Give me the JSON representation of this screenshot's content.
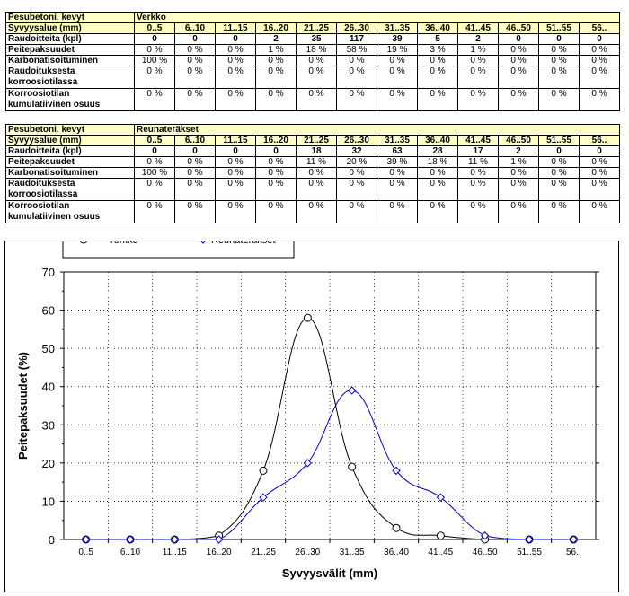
{
  "tables": [
    {
      "title": "Pesubetoni, kevyt",
      "group": "Verkko",
      "rows": [
        {
          "label": "Syvyysalue (mm)",
          "values": [
            "0..5",
            "6..10",
            "11..15",
            "16..20",
            "21..25",
            "26..30",
            "31..35",
            "36..40",
            "41..45",
            "46..50",
            "51..55",
            "56.."
          ]
        },
        {
          "label": "Raudoitteita (kpl)",
          "values": [
            "0",
            "0",
            "0",
            "2",
            "35",
            "117",
            "39",
            "5",
            "2",
            "0",
            "0",
            "0"
          ]
        },
        {
          "label": "Peitepaksuudet",
          "values": [
            "0 %",
            "0 %",
            "0 %",
            "1 %",
            "18 %",
            "58 %",
            "19 %",
            "3 %",
            "1 %",
            "0 %",
            "0 %",
            "0 %"
          ]
        },
        {
          "label": "Karbonatisoituminen",
          "values": [
            "100 %",
            "0 %",
            "0 %",
            "0 %",
            "0 %",
            "0 %",
            "0 %",
            "0 %",
            "0 %",
            "0 %",
            "0 %",
            "0 %"
          ]
        },
        {
          "label": "Raudoituksesta korroosiotilassa",
          "values": [
            "0 %",
            "0 %",
            "0 %",
            "0 %",
            "0 %",
            "0 %",
            "0 %",
            "0 %",
            "0 %",
            "0 %",
            "0 %",
            "0 %"
          ]
        },
        {
          "label": "Korroosiotilan kumulatiivinen osuus",
          "values": [
            "0 %",
            "0 %",
            "0 %",
            "0 %",
            "0 %",
            "0 %",
            "0 %",
            "0 %",
            "0 %",
            "0 %",
            "0 %",
            "0 %"
          ]
        }
      ]
    },
    {
      "title": "Pesubetoni, kevyt",
      "group": "Reunateräkset",
      "rows": [
        {
          "label": "Syvyysalue (mm)",
          "values": [
            "0..5",
            "6..10",
            "11..15",
            "16..20",
            "21..25",
            "26..30",
            "31..35",
            "36..40",
            "41..45",
            "46..50",
            "51..55",
            "56.."
          ]
        },
        {
          "label": "Raudoitteita (kpl)",
          "values": [
            "0",
            "0",
            "0",
            "0",
            "18",
            "32",
            "63",
            "28",
            "17",
            "2",
            "0",
            "0"
          ]
        },
        {
          "label": "Peitepaksuudet",
          "values": [
            "0 %",
            "0 %",
            "0 %",
            "0 %",
            "11 %",
            "20 %",
            "39 %",
            "18 %",
            "11 %",
            "1 %",
            "0 %",
            "0 %"
          ]
        },
        {
          "label": "Karbonatisoituminen",
          "values": [
            "100 %",
            "0 %",
            "0 %",
            "0 %",
            "0 %",
            "0 %",
            "0 %",
            "0 %",
            "0 %",
            "0 %",
            "0 %",
            "0 %"
          ]
        },
        {
          "label": "Raudoituksesta korroosiotilassa",
          "values": [
            "0 %",
            "0 %",
            "0 %",
            "0 %",
            "0 %",
            "0 %",
            "0 %",
            "0 %",
            "0 %",
            "0 %",
            "0 %",
            "0 %"
          ]
        },
        {
          "label": "Korroosiotilan kumulatiivinen osuus",
          "values": [
            "0 %",
            "0 %",
            "0 %",
            "0 %",
            "0 %",
            "0 %",
            "0 %",
            "0 %",
            "0 %",
            "0 %",
            "0 %",
            "0 %"
          ]
        }
      ]
    }
  ],
  "chart_data": {
    "type": "line",
    "title": "",
    "xlabel": "Syvyysvälit (mm)",
    "ylabel": "Peitepaksuudet (%)",
    "categories": [
      "0..5",
      "6..10",
      "11..15",
      "16..20",
      "21..25",
      "26..30",
      "31..35",
      "36..40",
      "41..45",
      "46..50",
      "51..55",
      "56.."
    ],
    "ylim": [
      0,
      70
    ],
    "yticks": [
      0,
      10,
      20,
      30,
      40,
      50,
      60,
      70
    ],
    "grid": true,
    "legend_position": "top-left",
    "series": [
      {
        "name": "Verkko",
        "color": "#000000",
        "marker": "circle",
        "values": [
          0,
          0,
          0,
          1,
          18,
          58,
          19,
          3,
          1,
          0,
          0,
          0
        ]
      },
      {
        "name": "Reunateräkset",
        "color": "#0000cc",
        "marker": "diamond",
        "values": [
          0,
          0,
          0,
          0,
          11,
          20,
          39,
          18,
          11,
          1,
          0,
          0
        ]
      }
    ]
  }
}
